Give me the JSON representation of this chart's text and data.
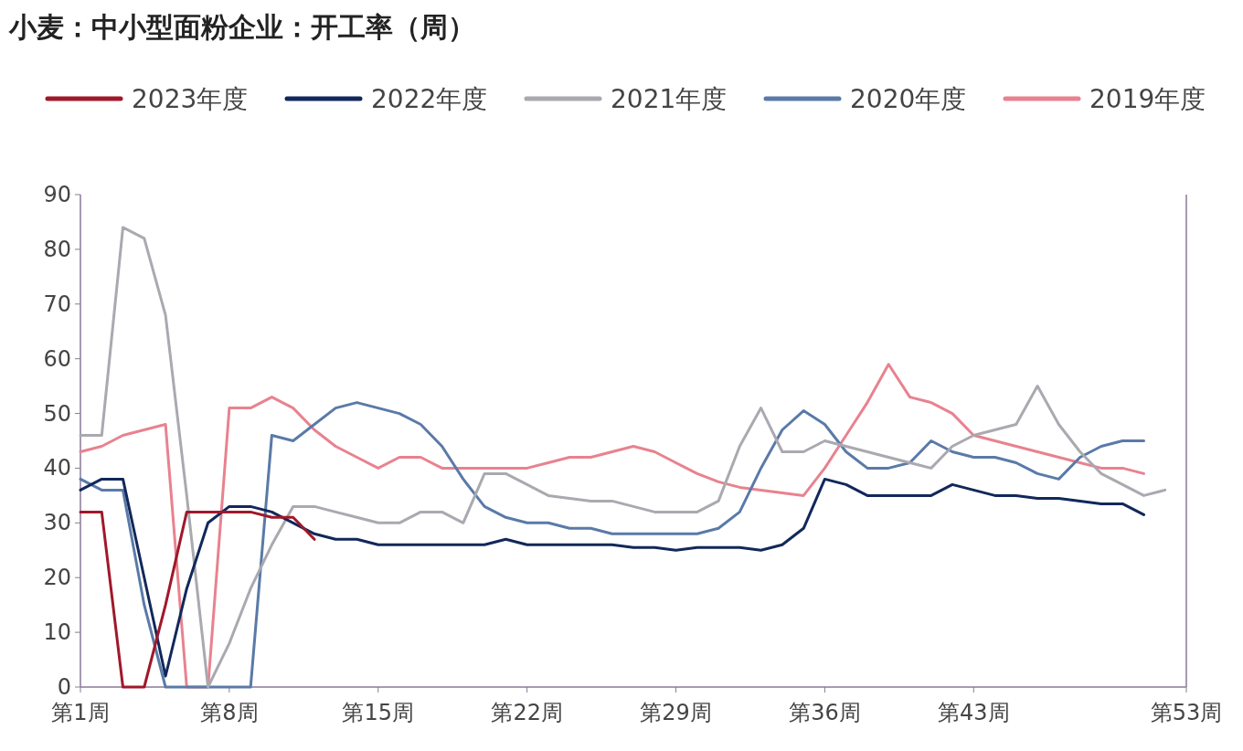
{
  "chart_data": {
    "type": "line",
    "title": "小麦：中小型面粉企业：开工率（周）",
    "legend": "top",
    "grid": false,
    "categories": [
      "第1周",
      null,
      null,
      null,
      null,
      null,
      null,
      "第8周",
      null,
      null,
      null,
      null,
      null,
      null,
      "第15周",
      null,
      null,
      null,
      null,
      null,
      null,
      "第22周",
      null,
      null,
      null,
      null,
      null,
      null,
      "第29周",
      null,
      null,
      null,
      null,
      null,
      null,
      "第36周",
      null,
      null,
      null,
      null,
      null,
      null,
      "第43周",
      null,
      null,
      null,
      null,
      null,
      null,
      null,
      null,
      null,
      "第53周"
    ],
    "ylim": [
      0,
      90
    ],
    "yticks": [
      0,
      10,
      20,
      30,
      40,
      50,
      60,
      70,
      80,
      90
    ],
    "series": [
      {
        "name": "2023年度",
        "color": "#a0182a",
        "values": [
          32,
          32,
          0,
          0,
          15,
          32,
          32,
          32,
          32,
          31,
          31,
          27,
          null,
          null,
          null,
          null,
          null,
          null,
          null,
          null,
          null,
          null,
          null,
          null,
          null,
          null,
          null,
          null,
          null,
          null,
          null,
          null,
          null,
          null,
          null,
          null,
          null,
          null,
          null,
          null,
          null,
          null,
          null,
          null,
          null,
          null,
          null,
          null,
          null,
          null,
          null,
          null,
          null
        ]
      },
      {
        "name": "2022年度",
        "color": "#12285a",
        "values": [
          36,
          38,
          38,
          20,
          2,
          18,
          30,
          33,
          33,
          32,
          30,
          28,
          27,
          27,
          26,
          26,
          26,
          26,
          26,
          26,
          27,
          26,
          26,
          26,
          26,
          26,
          25.5,
          25.5,
          25,
          25.5,
          25.5,
          25.5,
          25,
          26,
          29,
          38,
          37,
          35,
          35,
          35,
          35,
          37,
          36,
          35,
          35,
          34.5,
          34.5,
          34,
          33.5,
          33.5,
          31.5,
          null,
          null
        ]
      },
      {
        "name": "2021年度",
        "color": "#a9a9b0",
        "values": [
          46,
          46,
          84,
          82,
          68,
          35,
          0,
          8,
          18,
          26,
          33,
          33,
          32,
          31,
          30,
          30,
          32,
          32,
          30,
          39,
          39,
          37,
          35,
          34.5,
          34,
          34,
          33,
          32,
          32,
          32,
          34,
          44,
          51,
          43,
          43,
          45,
          44,
          43,
          42,
          41,
          40,
          44,
          46,
          47,
          48,
          55,
          48,
          43,
          39,
          37,
          35,
          36,
          null
        ]
      },
      {
        "name": "2020年度",
        "color": "#5a7aa8",
        "values": [
          38,
          36,
          36,
          15,
          0,
          0,
          0,
          0,
          0,
          46,
          45,
          48,
          51,
          52,
          51,
          50,
          48,
          44,
          38,
          33,
          31,
          30,
          30,
          29,
          29,
          28,
          28,
          28,
          28,
          28,
          29,
          32,
          40,
          47,
          50.5,
          48,
          43,
          40,
          40,
          41,
          45,
          43,
          42,
          42,
          41,
          39,
          38,
          42,
          44,
          45,
          45,
          null,
          null
        ]
      },
      {
        "name": "2019年度",
        "color": "#e8828f",
        "values": [
          43,
          44,
          46,
          47,
          48,
          0,
          0,
          51,
          51,
          53,
          51,
          47,
          44,
          42,
          40,
          42,
          42,
          40,
          40,
          40,
          40,
          40,
          41,
          42,
          42,
          43,
          44,
          43,
          41,
          39,
          37.5,
          36.5,
          36,
          35.5,
          35,
          40,
          46,
          52,
          59,
          53,
          52,
          50,
          46,
          45,
          44,
          43,
          42,
          41,
          40,
          40,
          39,
          null,
          null
        ]
      }
    ]
  }
}
